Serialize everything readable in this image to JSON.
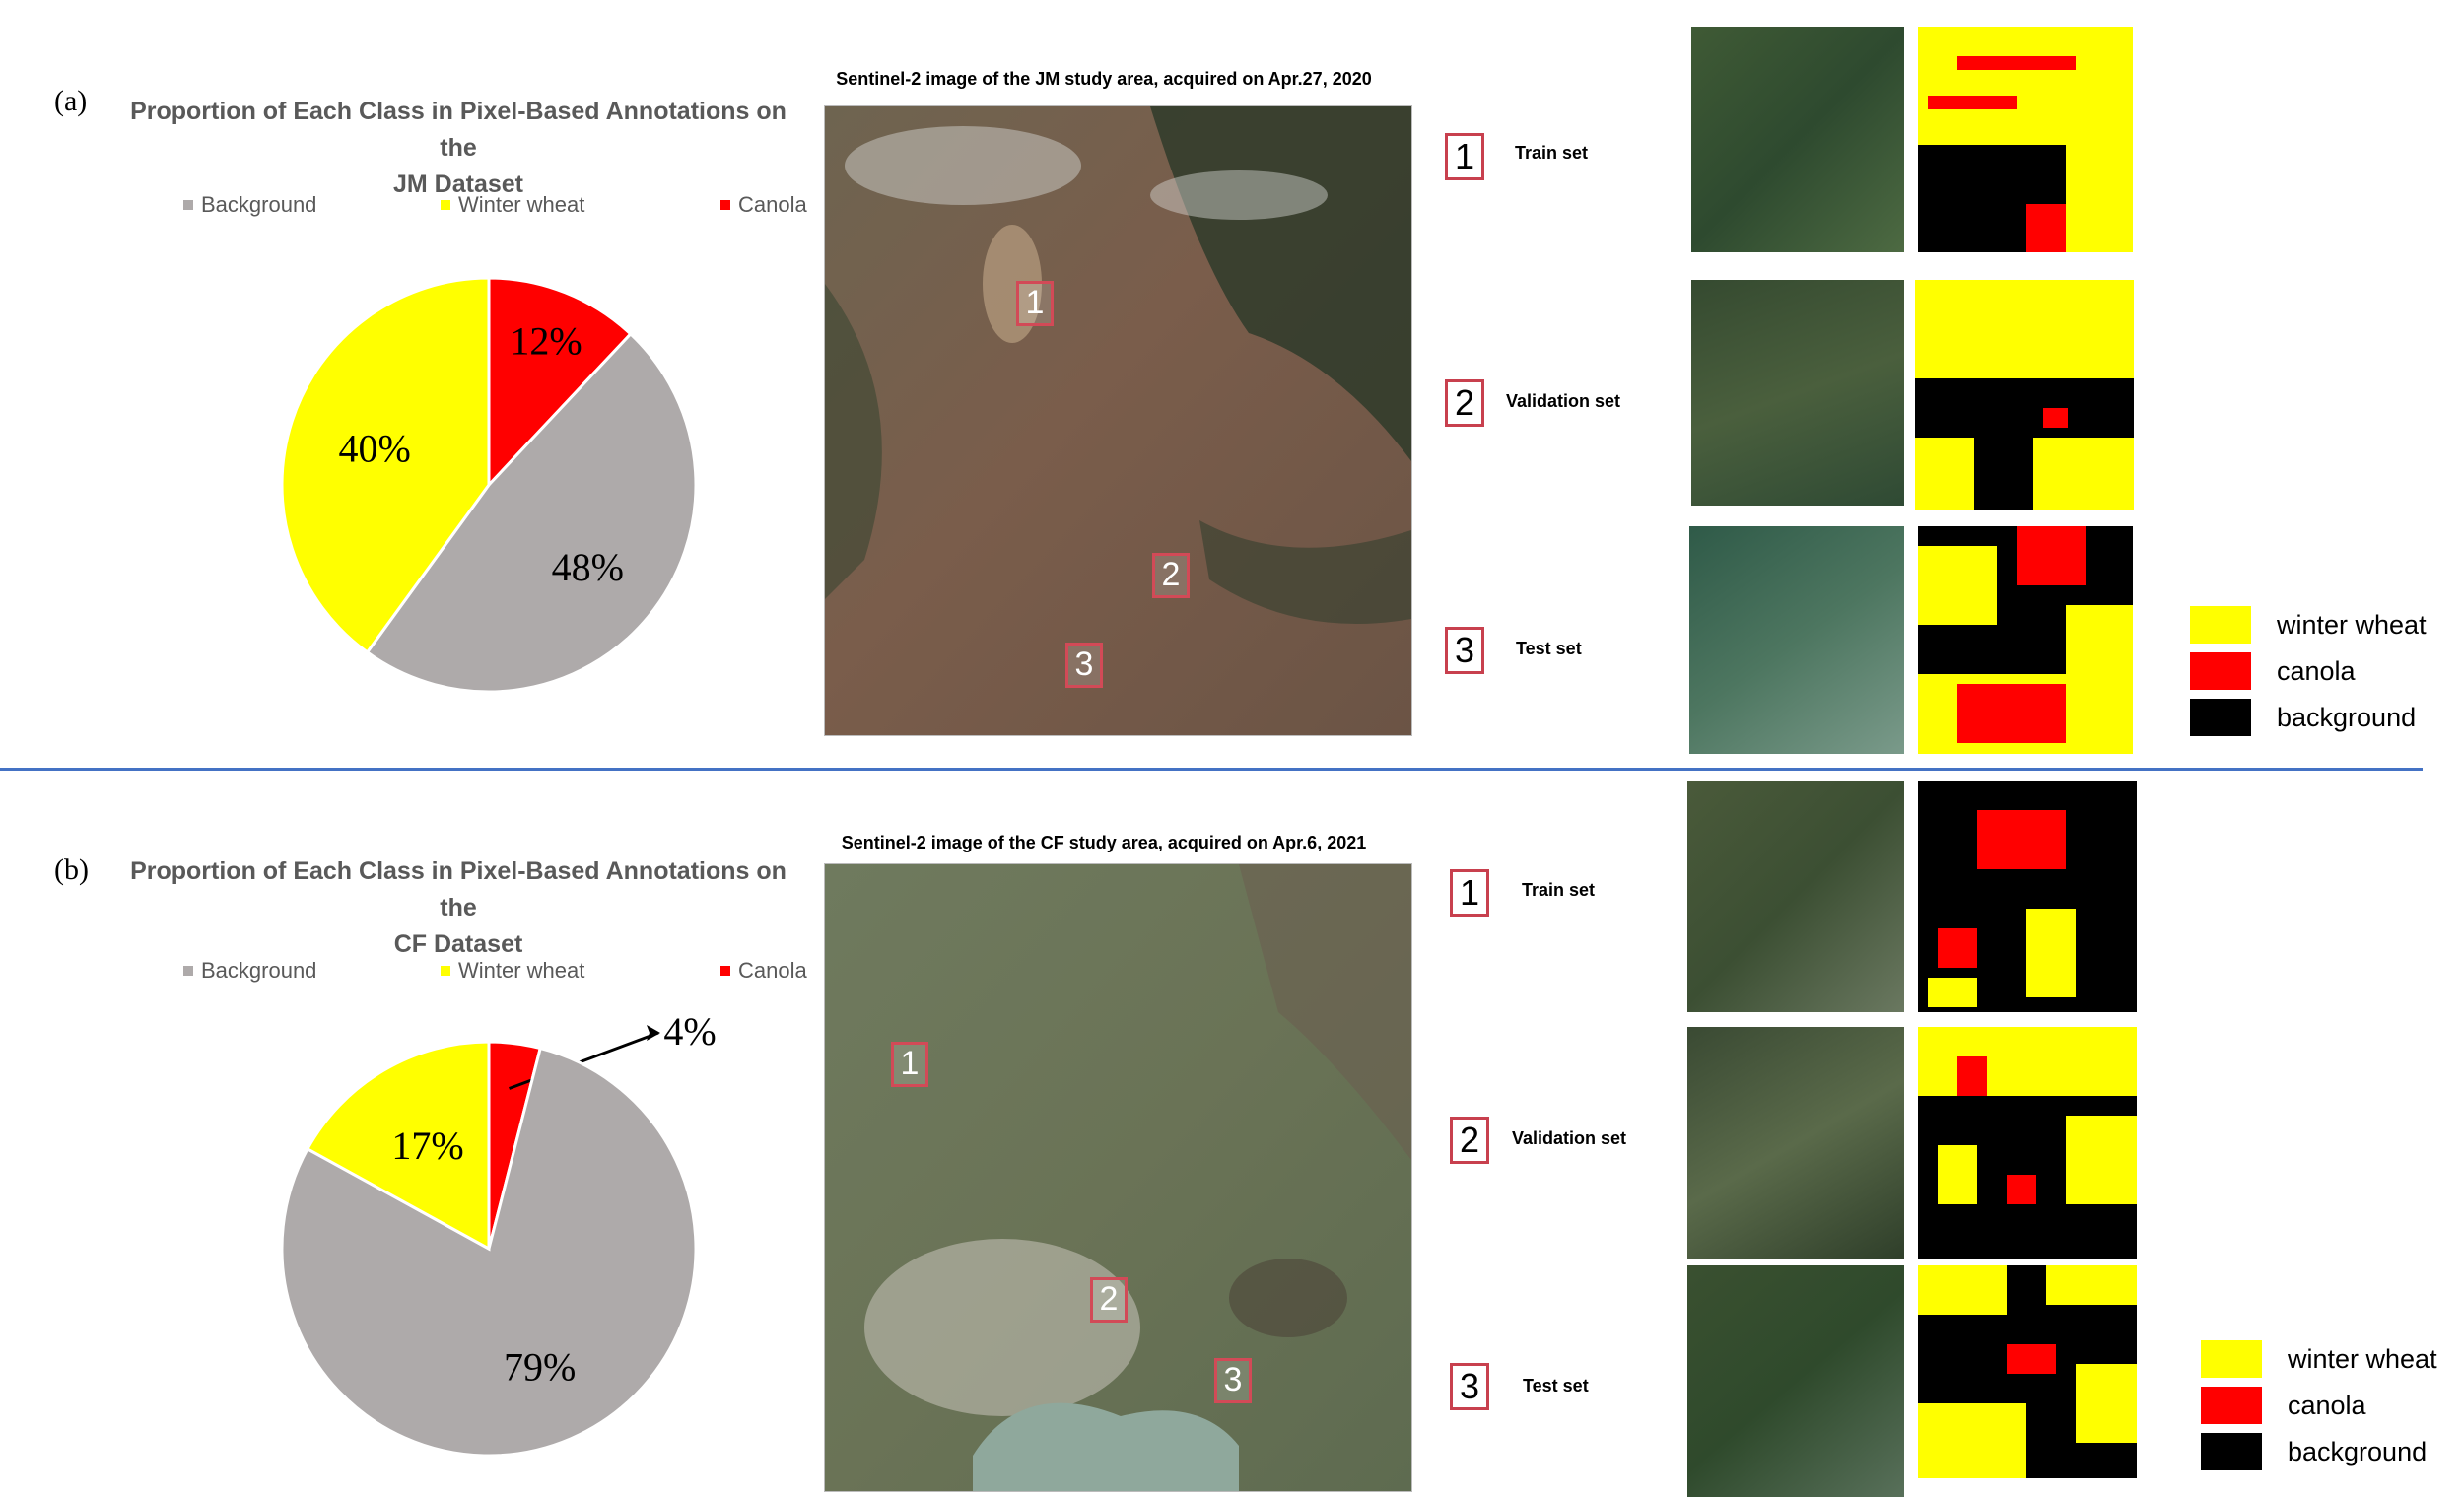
{
  "colors": {
    "background": "#aeaaaa",
    "winter_wheat": "#ffff00",
    "canola": "#ff0000",
    "mask_bg": "#000000",
    "divider": "#4472c4"
  },
  "panel_a": {
    "letter": "(a)",
    "map_title": "Sentinel-2 image of the JM study area, acquired on Apr.27, 2020",
    "markers": [
      "1",
      "2",
      "3"
    ],
    "sets": [
      {
        "num": "1",
        "label": "Train set"
      },
      {
        "num": "2",
        "label": "Validation set"
      },
      {
        "num": "3",
        "label": "Test set"
      }
    ],
    "key": [
      "winter wheat",
      "canola",
      "background"
    ]
  },
  "panel_b": {
    "letter": "(b)",
    "map_title": "Sentinel-2 image of the CF study area, acquired on Apr.6, 2021",
    "markers": [
      "1",
      "2",
      "3"
    ],
    "sets": [
      {
        "num": "1",
        "label": "Train set"
      },
      {
        "num": "2",
        "label": "Validation set"
      },
      {
        "num": "3",
        "label": "Test set"
      }
    ],
    "key": [
      "winter wheat",
      "canola",
      "background"
    ]
  },
  "chart_data": [
    {
      "type": "pie",
      "title": "Proportion of Each Class in Pixel-Based Annotations on the JM Dataset",
      "title_lines": [
        "Proportion of Each Class in Pixel-Based Annotations on the",
        "JM Dataset"
      ],
      "legend_position": "top",
      "categories": [
        "Background",
        "Winter wheat",
        "Canola"
      ],
      "values": [
        48,
        40,
        12
      ],
      "labels": [
        "48%",
        "40%",
        "12%"
      ],
      "colors": [
        "#aeaaaa",
        "#ffff00",
        "#ff0000"
      ]
    },
    {
      "type": "pie",
      "title": "Proportion of Each Class in Pixel-Based Annotations on the CF Dataset",
      "title_lines": [
        "Proportion of Each Class in Pixel-Based Annotations on the",
        "CF Dataset"
      ],
      "legend_position": "top",
      "categories": [
        "Background",
        "Winter wheat",
        "Canola"
      ],
      "values": [
        79,
        17,
        4
      ],
      "labels": [
        "79%",
        "17%",
        "4%"
      ],
      "colors": [
        "#aeaaaa",
        "#ffff00",
        "#ff0000"
      ]
    }
  ]
}
